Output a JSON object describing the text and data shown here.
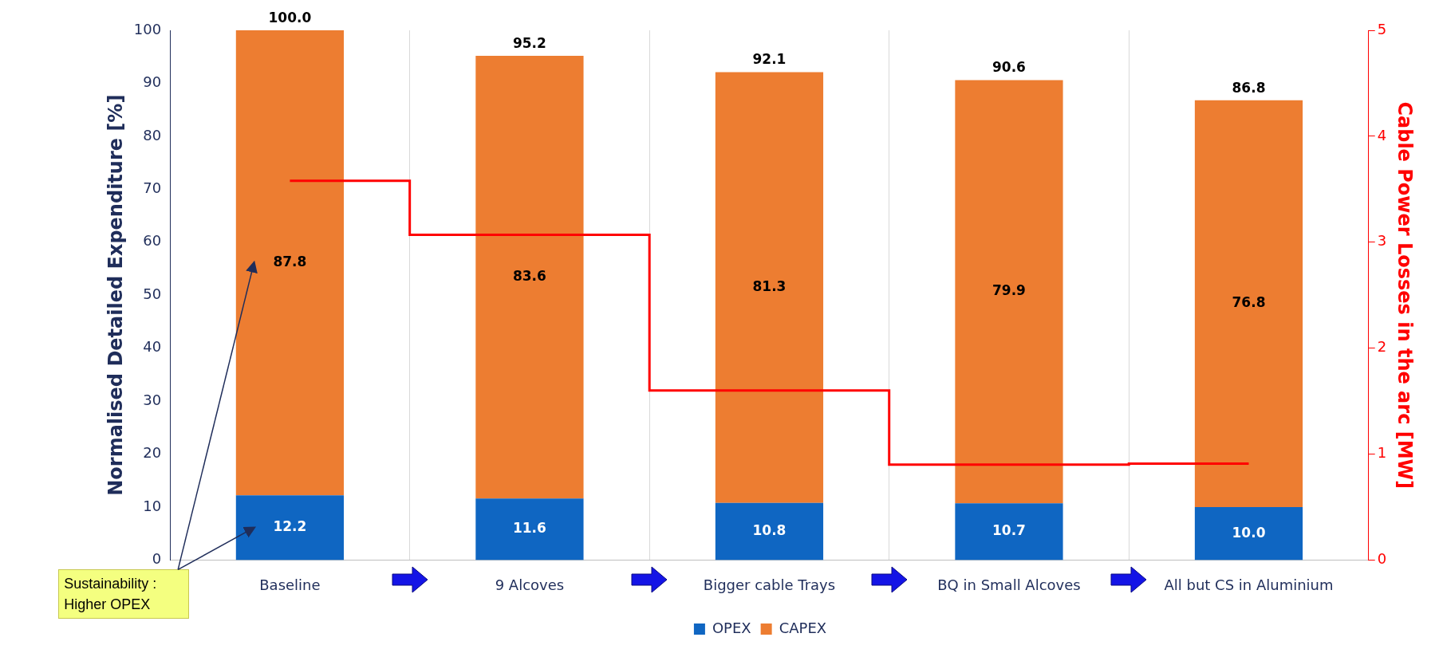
{
  "chart_data": {
    "type": "bar",
    "stacked": true,
    "ylabel": "Normalised Detailed Expenditure [%]",
    "y2label": "Cable Power Losses in the arc [MW]",
    "categories": [
      "Baseline",
      "9 Alcoves",
      "Bigger cable Trays",
      "BQ in Small Alcoves",
      "All but CS in Aluminium"
    ],
    "series": [
      {
        "name": "OPEX",
        "color": "#0f66c2",
        "values": [
          12.2,
          11.6,
          10.8,
          10.7,
          10.0
        ],
        "value_labels": [
          "12.2",
          "11.6",
          "10.8",
          "10.7",
          "10.0"
        ]
      },
      {
        "name": "CAPEX",
        "color": "#ed7d31",
        "values": [
          87.8,
          83.6,
          81.3,
          79.9,
          76.8
        ],
        "value_labels": [
          "87.8",
          "83.6",
          "81.3",
          "79.9",
          "76.8"
        ]
      },
      {
        "type": "step",
        "axis": "y2",
        "color": "#ff0000",
        "values": [
          3.58,
          3.07,
          1.6,
          0.9,
          0.91
        ]
      }
    ],
    "totals": [
      "100.0",
      "95.2",
      "92.1",
      "90.6",
      "86.8"
    ],
    "ylim": [
      0,
      100
    ],
    "yticks": [
      0,
      10,
      20,
      30,
      40,
      50,
      60,
      70,
      80,
      90,
      100
    ],
    "y2lim": [
      0,
      5
    ],
    "y2ticks": [
      0,
      1,
      2,
      3,
      4,
      5
    ],
    "grid": "x",
    "legend": "bottom",
    "annotations": [
      "Sustainability : Higher OPEX"
    ]
  }
}
